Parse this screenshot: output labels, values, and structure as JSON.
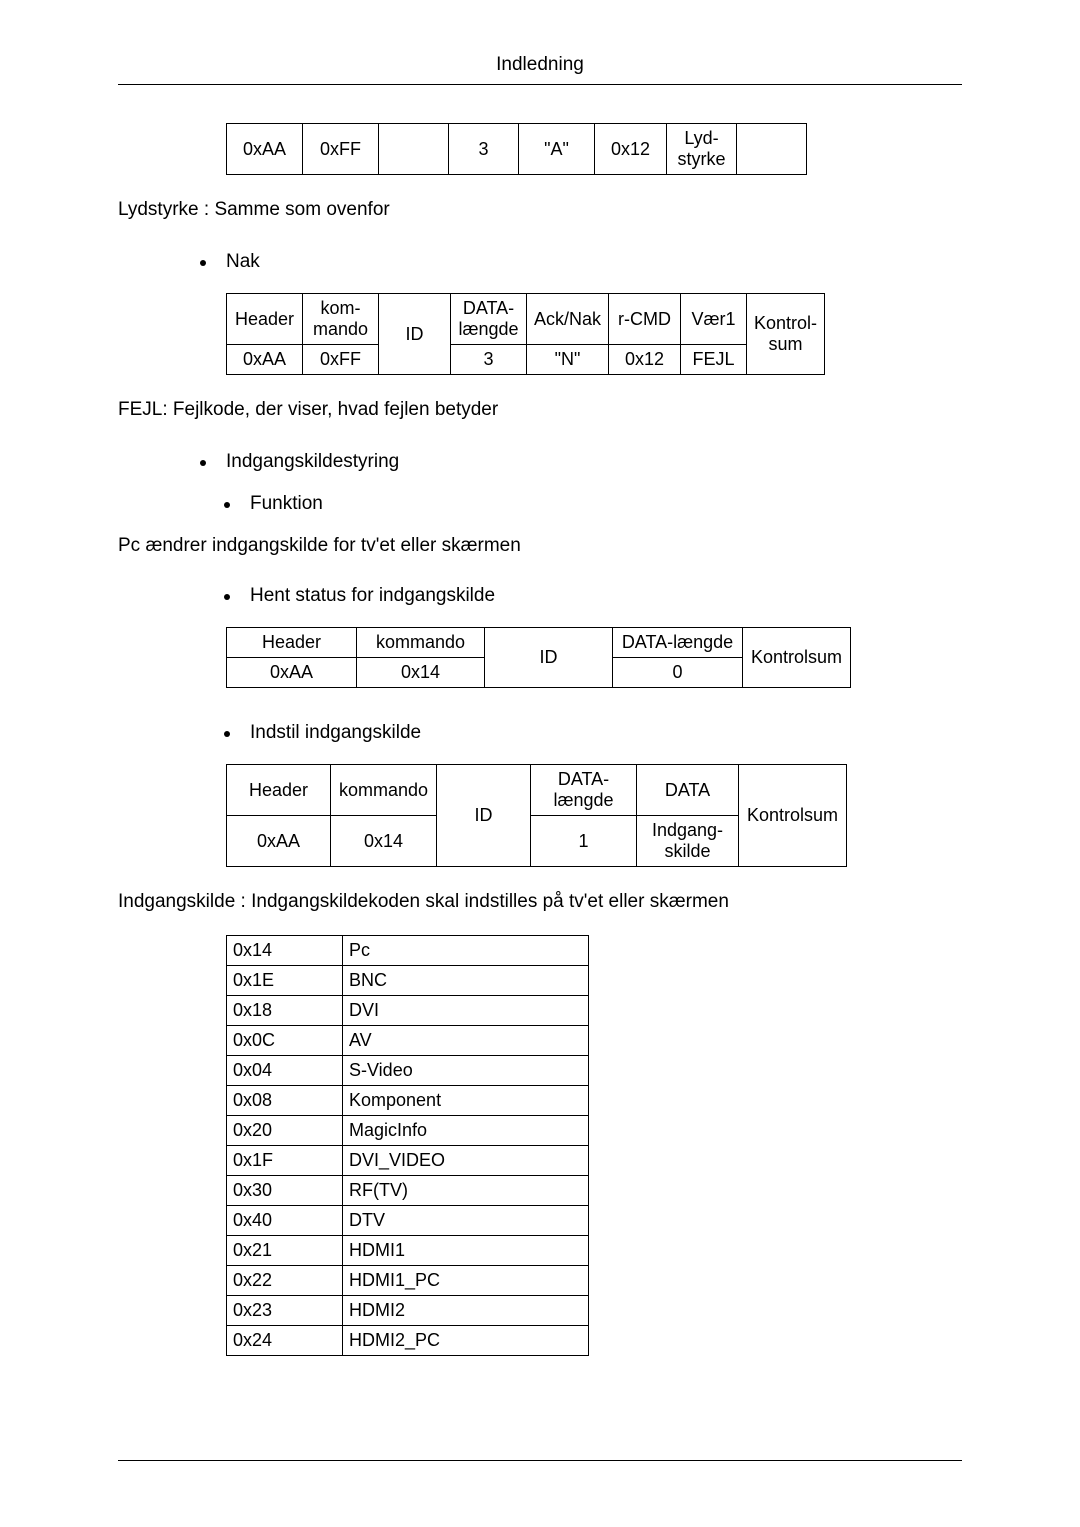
{
  "page_title": "Indledning",
  "table1_row": [
    "0xAA",
    "0xFF",
    "",
    "3",
    "\"A\"",
    "0x12",
    "Lyd-styrke",
    ""
  ],
  "note_lydstyrke": "Lydstyrke : Samme som ovenfor",
  "bullet_nak": "Nak",
  "table2_head": [
    "Header",
    "kom-mando",
    "ID",
    "DATA-længde",
    "Ack/Nak",
    "r-CMD",
    "Vær1",
    "Kontrol-sum"
  ],
  "table2_row": [
    "0xAA",
    "0xFF",
    "",
    "3",
    "\"N\"",
    "0x12",
    "FEJL"
  ],
  "note_fejl": "FEJL: Fejlkode, der viser, hvad fejlen betyder",
  "bullet_indgang": "Indgangskildestyring",
  "bullet_funktion": "Funktion",
  "note_funktion": "Pc ændrer indgangskilde for tv'et eller skærmen",
  "bullet_hent": "Hent status for indgangskilde",
  "table3_head": [
    "Header",
    "kommando",
    "ID",
    "DATA-længde",
    "Kontrolsum"
  ],
  "table3_row": [
    "0xAA",
    "0x14",
    "",
    "0"
  ],
  "bullet_indstil": "Indstil indgangskilde",
  "table4_head": [
    "Header",
    "kommando",
    "ID",
    "DATA-længde",
    "DATA",
    "Kontrolsum"
  ],
  "table4_row": [
    "0xAA",
    "0x14",
    "",
    "1",
    "Indgang-skilde"
  ],
  "note_indgangskilde": "Indgangskilde : Indgangskildekoden skal indstilles på tv'et eller skærmen",
  "codes": [
    [
      "0x14",
      "Pc"
    ],
    [
      "0x1E",
      "BNC"
    ],
    [
      "0x18",
      "DVI"
    ],
    [
      "0x0C",
      "AV"
    ],
    [
      "0x04",
      "S-Video"
    ],
    [
      "0x08",
      "Komponent"
    ],
    [
      "0x20",
      "MagicInfo"
    ],
    [
      "0x1F",
      "DVI_VIDEO"
    ],
    [
      "0x30",
      "RF(TV)"
    ],
    [
      "0x40",
      "DTV"
    ],
    [
      "0x21",
      "HDMI1"
    ],
    [
      "0x22",
      "HDMI1_PC"
    ],
    [
      "0x23",
      "HDMI2"
    ],
    [
      "0x24",
      "HDMI2_PC"
    ]
  ]
}
